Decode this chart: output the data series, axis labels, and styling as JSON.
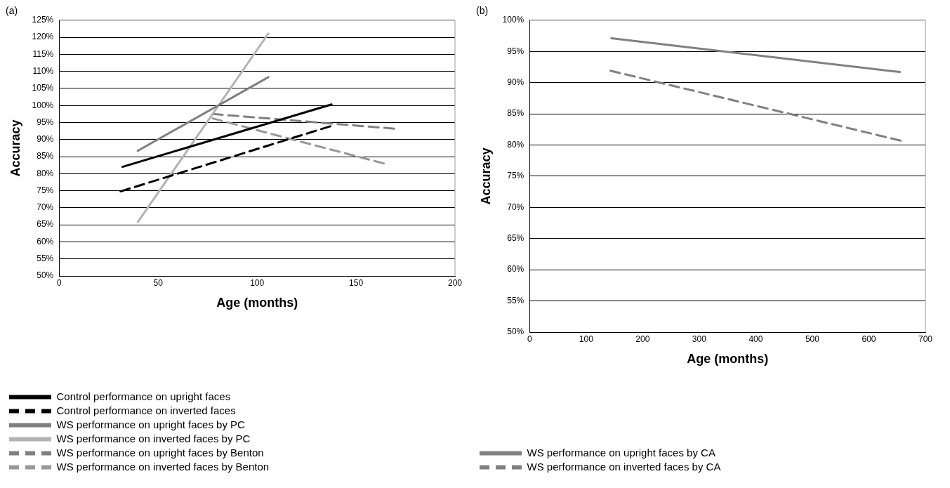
{
  "chart_data": [
    {
      "type": "line",
      "title": "(a)",
      "xlabel": "Age (months)",
      "ylabel": "Accuracy",
      "xlim": [
        0,
        200
      ],
      "xticks": [
        0,
        50,
        100,
        150,
        200
      ],
      "ylim": [
        50,
        125
      ],
      "yticks": [
        {
          "value": 50,
          "label": "50%"
        },
        {
          "value": 55,
          "label": "55%"
        },
        {
          "value": 60,
          "label": "60%"
        },
        {
          "value": 65,
          "label": "65%"
        },
        {
          "value": 70,
          "label": "70%"
        },
        {
          "value": 75,
          "label": "75%"
        },
        {
          "value": 80,
          "label": "80%"
        },
        {
          "value": 85,
          "label": "85%"
        },
        {
          "value": 90,
          "label": "90%"
        },
        {
          "value": 95,
          "label": "95%"
        },
        {
          "value": 100,
          "label": "100%"
        },
        {
          "value": 105,
          "label": "105%"
        },
        {
          "value": 110,
          "label": "110%"
        },
        {
          "value": 115,
          "label": "115%"
        },
        {
          "value": 120,
          "label": "120%"
        },
        {
          "value": 125,
          "label": "125%"
        }
      ],
      "grid": "y",
      "legend": "bottom",
      "marker": "none",
      "series": [
        {
          "name": "Control performance on upright faces",
          "color": "#000000",
          "line_style": "solid",
          "x": [
            32,
            137.6
          ],
          "values": [
            82,
            100.3
          ]
        },
        {
          "name": "Control performance on inverted faces",
          "color": "#000000",
          "line_style": "dashed",
          "x": [
            31,
            137
          ],
          "values": [
            74.8,
            93.9
          ]
        },
        {
          "name": "WS performance on upright faces by PC",
          "color": "#808080",
          "line_style": "solid",
          "x": [
            39.7,
            105.7
          ],
          "values": [
            86.7,
            108.3
          ]
        },
        {
          "name": "WS performance on inverted faces by PC",
          "color": "#b3b3b3",
          "line_style": "solid",
          "x": [
            39.7,
            105.7
          ],
          "values": [
            65.8,
            121.1
          ]
        },
        {
          "name": "WS performance on upright faces by Benton",
          "color": "#808080",
          "line_style": "dashed",
          "x": [
            77.6,
            169.3
          ],
          "values": [
            97.5,
            93.2
          ]
        },
        {
          "name": "WS performance on inverted faces by Benton",
          "color": "#999999",
          "line_style": "dashed",
          "x": [
            77.6,
            164
          ],
          "values": [
            96.2,
            83
          ]
        }
      ]
    },
    {
      "type": "line",
      "title": "(b)",
      "xlabel": "Age (months)",
      "ylabel": "Accuracy",
      "xlim": [
        0,
        700
      ],
      "xticks": [
        0,
        100,
        200,
        300,
        400,
        500,
        600,
        700
      ],
      "ylim": [
        50,
        100
      ],
      "yticks": [
        {
          "value": 50,
          "label": "50%"
        },
        {
          "value": 55,
          "label": "55%"
        },
        {
          "value": 60,
          "label": "60%"
        },
        {
          "value": 65,
          "label": "65%"
        },
        {
          "value": 70,
          "label": "70%"
        },
        {
          "value": 75,
          "label": "75%"
        },
        {
          "value": 80,
          "label": "80%"
        },
        {
          "value": 85,
          "label": "85%"
        },
        {
          "value": 90,
          "label": "90%"
        },
        {
          "value": 95,
          "label": "95%"
        },
        {
          "value": 100,
          "label": "100%"
        }
      ],
      "grid": "y",
      "legend": "bottom",
      "marker": "none",
      "series": [
        {
          "name": "WS performance on upright faces by CA",
          "color": "#808080",
          "line_style": "solid",
          "x": [
            144.6,
            654.8
          ],
          "values": [
            97.1,
            91.7
          ]
        },
        {
          "name": "WS performance on inverted faces by CA",
          "color": "#808080",
          "line_style": "dashed",
          "x": [
            143,
            656
          ],
          "values": [
            91.9,
            80.7
          ]
        }
      ]
    }
  ]
}
